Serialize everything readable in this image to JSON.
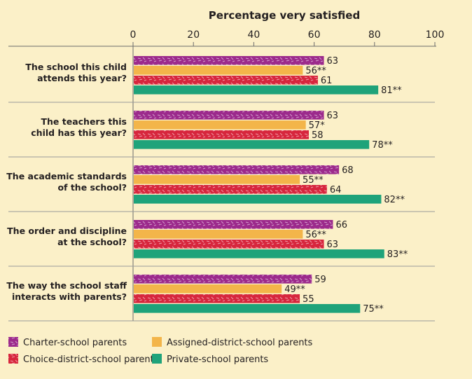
{
  "chart_data": {
    "type": "bar",
    "orientation": "horizontal",
    "title": "Percentage very satisfied",
    "xlim": [
      0,
      100
    ],
    "xticks": [
      0,
      20,
      40,
      60,
      80,
      100
    ],
    "grid": false,
    "legend_position": "bottom",
    "categories": [
      [
        "The school this child",
        "attends this year?"
      ],
      [
        "The teachers this",
        "child has this year?"
      ],
      [
        "The academic standards",
        "of the school?"
      ],
      [
        "The order and discipline",
        "at the school?"
      ],
      [
        "The way the school staff",
        "interacts with parents?"
      ]
    ],
    "series": [
      {
        "name": "Charter-school parents",
        "color": "#9c2a8c",
        "pattern": "dashes",
        "values": [
          63,
          63,
          68,
          66,
          59
        ],
        "labels": [
          "63",
          "63",
          "68",
          "66",
          "59"
        ]
      },
      {
        "name": "Assigned-district-school parents",
        "color": "#f3b54a",
        "pattern": "none",
        "values": [
          56,
          57,
          55,
          56,
          49
        ],
        "labels": [
          "56**",
          "57*",
          "55**",
          "56**",
          "49**"
        ]
      },
      {
        "name": "Choice-district-school parents",
        "color": "#d7263d",
        "pattern": "dashes",
        "values": [
          61,
          58,
          64,
          63,
          55
        ],
        "labels": [
          "61",
          "58",
          "64",
          "63",
          "55"
        ]
      },
      {
        "name": "Private-school parents",
        "color": "#1fa37a",
        "pattern": "none",
        "values": [
          81,
          78,
          82,
          83,
          75
        ],
        "labels": [
          "81**",
          "78**",
          "82**",
          "83**",
          "75**"
        ]
      }
    ],
    "legend_rows": [
      [
        "Charter-school parents",
        "Assigned-district-school parents"
      ],
      [
        "Choice-district-school parents",
        "Private-school parents"
      ]
    ]
  }
}
